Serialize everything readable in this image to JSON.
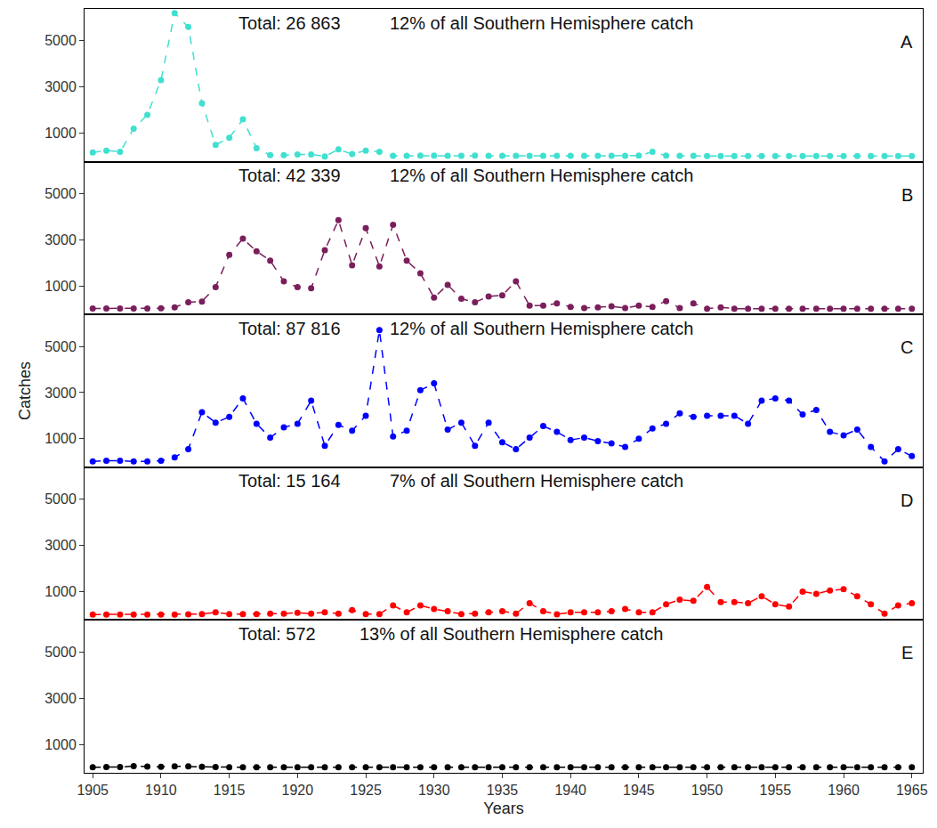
{
  "chart_data": [
    {
      "type": "line",
      "panel": "A",
      "color": "#40E0D0",
      "marker": "circle",
      "line_style": "dashed",
      "tick_labels": "y",
      "annotations": [
        "Total: 26 863",
        "12% of all Southern Hemisphere catch"
      ],
      "x": [
        1905,
        1906,
        1907,
        1908,
        1909,
        1910,
        1911,
        1912,
        1913,
        1914,
        1915,
        1916,
        1917,
        1918,
        1919,
        1920,
        1921,
        1922,
        1923,
        1924,
        1925,
        1926,
        1927,
        1928,
        1929,
        1930,
        1931,
        1932,
        1933,
        1934,
        1935,
        1936,
        1937,
        1938,
        1939,
        1940,
        1941,
        1942,
        1943,
        1944,
        1945,
        1946,
        1947,
        1948,
        1949,
        1950,
        1951,
        1952,
        1953,
        1954,
        1955,
        1956,
        1957,
        1958,
        1959,
        1960,
        1961,
        1962,
        1963,
        1964,
        1965
      ],
      "values": [
        170,
        250,
        200,
        1200,
        1800,
        3300,
        6200,
        5600,
        2300,
        500,
        800,
        1600,
        350,
        50,
        50,
        80,
        80,
        0,
        300,
        100,
        250,
        200,
        20,
        20,
        30,
        30,
        20,
        20,
        30,
        20,
        20,
        20,
        20,
        20,
        20,
        20,
        20,
        20,
        20,
        20,
        30,
        200,
        30,
        20,
        20,
        10,
        10,
        10,
        10,
        10,
        10,
        10,
        10,
        10,
        10,
        10,
        10,
        10,
        10,
        10,
        10
      ],
      "xlim": [
        1904.4,
        1965.8
      ],
      "ylim": [
        -230,
        6380
      ],
      "yticks": [
        1000,
        3000,
        5000
      ]
    },
    {
      "type": "line",
      "panel": "B",
      "color": "#7A1F5C",
      "marker": "circle",
      "line_style": "dashed",
      "tick_labels": "y",
      "annotations": [
        "Total: 42 339",
        "12% of all Southern Hemisphere catch"
      ],
      "x": [
        1905,
        1906,
        1907,
        1908,
        1909,
        1910,
        1911,
        1912,
        1913,
        1914,
        1915,
        1916,
        1917,
        1918,
        1919,
        1920,
        1921,
        1922,
        1923,
        1924,
        1925,
        1926,
        1927,
        1928,
        1929,
        1930,
        1931,
        1932,
        1933,
        1934,
        1935,
        1936,
        1937,
        1938,
        1939,
        1940,
        1941,
        1942,
        1943,
        1944,
        1945,
        1946,
        1947,
        1948,
        1949,
        1950,
        1951,
        1952,
        1953,
        1954,
        1955,
        1956,
        1957,
        1958,
        1959,
        1960,
        1961,
        1962,
        1963,
        1964,
        1965
      ],
      "values": [
        30,
        30,
        30,
        30,
        30,
        40,
        80,
        300,
        330,
        950,
        2350,
        3050,
        2500,
        2100,
        1200,
        950,
        900,
        2550,
        3850,
        1900,
        3500,
        1850,
        3650,
        2100,
        1550,
        500,
        1050,
        450,
        300,
        550,
        600,
        1200,
        150,
        150,
        250,
        100,
        50,
        80,
        120,
        50,
        150,
        100,
        350,
        50,
        250,
        20,
        80,
        20,
        20,
        20,
        20,
        20,
        20,
        20,
        20,
        20,
        20,
        20,
        20,
        20,
        20
      ],
      "xlim": [
        1904.4,
        1965.8
      ],
      "ylim": [
        -230,
        6380
      ],
      "yticks": [
        1000,
        3000,
        5000
      ]
    },
    {
      "type": "line",
      "panel": "C",
      "color": "#0000FF",
      "marker": "circle",
      "line_style": "dashed",
      "tick_labels": "y",
      "ylabel": "Catches",
      "annotations": [
        "Total: 87 816",
        "12% of all Southern Hemisphere catch"
      ],
      "x": [
        1905,
        1906,
        1907,
        1908,
        1909,
        1910,
        1911,
        1912,
        1913,
        1914,
        1915,
        1916,
        1917,
        1918,
        1919,
        1920,
        1921,
        1922,
        1923,
        1924,
        1925,
        1926,
        1927,
        1928,
        1929,
        1930,
        1931,
        1932,
        1933,
        1934,
        1935,
        1936,
        1937,
        1938,
        1939,
        1940,
        1941,
        1942,
        1943,
        1944,
        1945,
        1946,
        1947,
        1948,
        1949,
        1950,
        1951,
        1952,
        1953,
        1954,
        1955,
        1956,
        1957,
        1958,
        1959,
        1960,
        1961,
        1962,
        1963,
        1964,
        1965
      ],
      "values": [
        20,
        50,
        50,
        20,
        20,
        50,
        200,
        550,
        2150,
        1700,
        1950,
        2750,
        1650,
        1050,
        1500,
        1650,
        2650,
        700,
        1600,
        1350,
        2000,
        5700,
        1100,
        1350,
        3100,
        3400,
        1400,
        1700,
        700,
        1700,
        850,
        550,
        1050,
        1550,
        1300,
        950,
        1050,
        900,
        800,
        650,
        1000,
        1450,
        1650,
        2100,
        1950,
        2000,
        2000,
        2000,
        1650,
        2650,
        2750,
        2650,
        2050,
        2250,
        1300,
        1150,
        1400,
        650,
        20,
        550,
        250
      ],
      "xlim": [
        1904.4,
        1965.8
      ],
      "ylim": [
        -230,
        6380
      ],
      "yticks": [
        1000,
        3000,
        5000
      ]
    },
    {
      "type": "line",
      "panel": "D",
      "color": "#FF0000",
      "marker": "circle",
      "line_style": "dashed",
      "tick_labels": "y",
      "annotations": [
        "Total: 15 164",
        "7% of all Southern Hemisphere catch"
      ],
      "x": [
        1905,
        1906,
        1907,
        1908,
        1909,
        1910,
        1911,
        1912,
        1913,
        1914,
        1915,
        1916,
        1917,
        1918,
        1919,
        1920,
        1921,
        1922,
        1923,
        1924,
        1925,
        1926,
        1927,
        1928,
        1929,
        1930,
        1931,
        1932,
        1933,
        1934,
        1935,
        1936,
        1937,
        1938,
        1939,
        1940,
        1941,
        1942,
        1943,
        1944,
        1945,
        1946,
        1947,
        1948,
        1949,
        1950,
        1951,
        1952,
        1953,
        1954,
        1955,
        1956,
        1957,
        1958,
        1959,
        1960,
        1961,
        1962,
        1963,
        1964,
        1965
      ],
      "values": [
        10,
        10,
        10,
        10,
        10,
        10,
        10,
        20,
        30,
        100,
        30,
        30,
        30,
        50,
        50,
        80,
        50,
        100,
        50,
        200,
        30,
        30,
        400,
        100,
        400,
        250,
        150,
        30,
        50,
        100,
        150,
        50,
        500,
        150,
        20,
        100,
        100,
        100,
        150,
        250,
        100,
        100,
        450,
        650,
        600,
        1200,
        550,
        550,
        500,
        800,
        450,
        350,
        1000,
        900,
        1050,
        1100,
        800,
        450,
        50,
        400,
        500
      ],
      "xlim": [
        1904.4,
        1965.8
      ],
      "ylim": [
        -230,
        6380
      ],
      "yticks": [
        1000,
        3000,
        5000
      ]
    },
    {
      "type": "line",
      "panel": "E",
      "color": "#000000",
      "marker": "circle",
      "line_style": "dashed",
      "xlabel": "Years",
      "annotations": [
        "Total: 572",
        "13% of all Southern Hemisphere catch"
      ],
      "x": [
        1905,
        1906,
        1907,
        1908,
        1909,
        1910,
        1911,
        1912,
        1913,
        1914,
        1915,
        1916,
        1917,
        1918,
        1919,
        1920,
        1921,
        1922,
        1923,
        1924,
        1925,
        1926,
        1927,
        1928,
        1929,
        1930,
        1931,
        1932,
        1933,
        1934,
        1935,
        1936,
        1937,
        1938,
        1939,
        1940,
        1941,
        1942,
        1943,
        1944,
        1945,
        1946,
        1947,
        1948,
        1949,
        1950,
        1951,
        1952,
        1953,
        1954,
        1955,
        1956,
        1957,
        1958,
        1959,
        1960,
        1961,
        1962,
        1963,
        1964,
        1965
      ],
      "values": [
        10,
        20,
        20,
        60,
        40,
        30,
        50,
        50,
        30,
        20,
        10,
        10,
        10,
        10,
        10,
        10,
        10,
        10,
        10,
        10,
        10,
        10,
        10,
        10,
        10,
        10,
        10,
        10,
        10,
        10,
        10,
        10,
        10,
        10,
        10,
        10,
        10,
        10,
        10,
        10,
        10,
        10,
        10,
        10,
        10,
        10,
        10,
        10,
        10,
        10,
        10,
        10,
        10,
        10,
        10,
        10,
        10,
        10,
        10,
        10,
        10
      ],
      "xlim": [
        1904.4,
        1965.8
      ],
      "ylim": [
        -230,
        6380
      ],
      "yticks": [
        1000,
        3000,
        5000
      ],
      "xticks": [
        1905,
        1910,
        1915,
        1920,
        1925,
        1930,
        1935,
        1940,
        1945,
        1950,
        1955,
        1960,
        1965
      ]
    }
  ]
}
